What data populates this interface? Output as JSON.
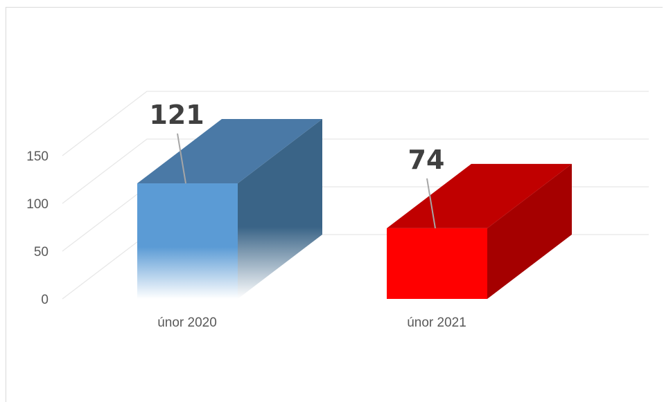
{
  "chart_data": {
    "type": "bar",
    "style": "3d-column",
    "categories": [
      "únor 2020",
      "únor 2021"
    ],
    "values": [
      121,
      74
    ],
    "data_labels": [
      "121",
      "74"
    ],
    "ylim": [
      0,
      150
    ],
    "yticks": [
      0,
      50,
      100,
      150
    ],
    "ytick_labels": [
      "0",
      "50",
      "100",
      "150"
    ],
    "grid": true,
    "legend": "none",
    "colors": {
      "bar1_front_top": "#5b9bd5",
      "bar1_side": "#3a6487",
      "bar1_top": "#4a79a6",
      "bar2_front": "#ff0000",
      "bar2_side": "#a50000",
      "bar2_top": "#c00000",
      "grid": "#e7e7e7",
      "label_line": "#a6a6a6"
    }
  }
}
